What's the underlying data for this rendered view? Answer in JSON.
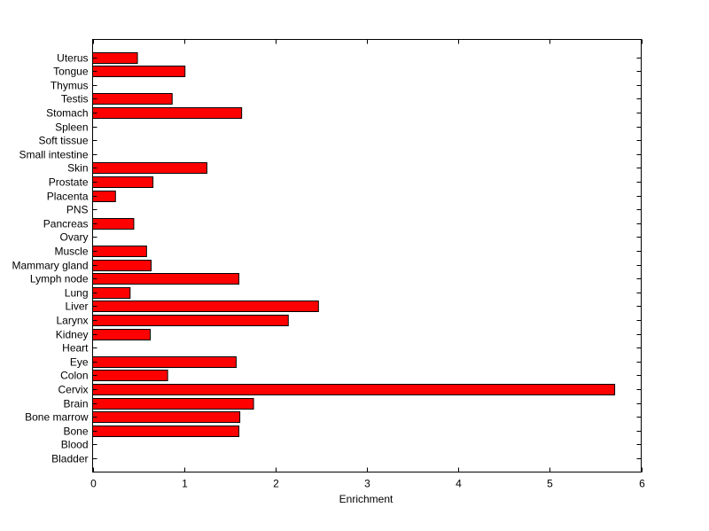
{
  "chart_data": {
    "type": "bar",
    "orientation": "horizontal",
    "title": "",
    "xlabel": "Enrichment",
    "ylabel": "",
    "xlim": [
      0,
      6
    ],
    "xticks": [
      0,
      1,
      2,
      3,
      4,
      5,
      6
    ],
    "grid": false,
    "legend": "none",
    "bar_color": "#ff0000",
    "categories": [
      "Bladder",
      "Blood",
      "Bone",
      "Bone marrow",
      "Brain",
      "Cervix",
      "Colon",
      "Eye",
      "Heart",
      "Kidney",
      "Larynx",
      "Liver",
      "Lung",
      "Lymph node",
      "Mammary gland",
      "Muscle",
      "Ovary",
      "Pancreas",
      "PNS",
      "Placenta",
      "Prostate",
      "Skin",
      "Small intestine",
      "Soft tissue",
      "Spleen",
      "Stomach",
      "Testis",
      "Thymus",
      "Tongue",
      "Uterus"
    ],
    "values": [
      0,
      0,
      1.6,
      1.61,
      1.76,
      5.71,
      0.82,
      1.57,
      0,
      0.63,
      2.14,
      2.47,
      0.41,
      1.6,
      0.64,
      0.59,
      0,
      0.45,
      0,
      0.25,
      0.66,
      1.25,
      0,
      0,
      0,
      1.63,
      0.87,
      0,
      1.01,
      0.49
    ]
  }
}
